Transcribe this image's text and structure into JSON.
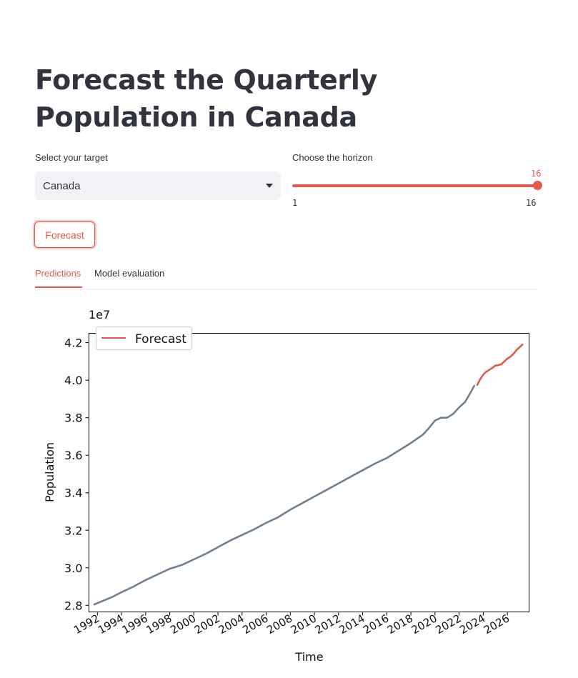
{
  "page": {
    "title": "Forecast the Quarterly Population in Canada"
  },
  "controls": {
    "target": {
      "label": "Select your target",
      "value": "Canada"
    },
    "horizon": {
      "label": "Choose the horizon",
      "min": "1",
      "max": "16",
      "value": "16"
    },
    "forecast_button": "Forecast"
  },
  "tabs": [
    {
      "label": "Predictions",
      "active": true
    },
    {
      "label": "Model evaluation",
      "active": false
    }
  ],
  "colors": {
    "accent": "#e25a4b",
    "history_line": "#708090",
    "forecast_line": "#e05a4a"
  },
  "chart_data": {
    "type": "line",
    "title": "",
    "xlabel": "Time",
    "ylabel": "Population",
    "offset_label": "1e7",
    "xlim": [
      1991.3,
      2027.8
    ],
    "ylim": [
      2.765,
      4.25
    ],
    "y_ticks": [
      2.8,
      3.0,
      3.2,
      3.4,
      3.6,
      3.8,
      4.0,
      4.2
    ],
    "y_tick_labels": [
      "2.8",
      "3.0",
      "3.2",
      "3.4",
      "3.6",
      "3.8",
      "4.0",
      "4.2"
    ],
    "x_ticks": [
      1992,
      1994,
      1996,
      1998,
      2000,
      2002,
      2004,
      2006,
      2008,
      2010,
      2012,
      2014,
      2016,
      2018,
      2020,
      2022,
      2024,
      2026
    ],
    "x_tick_labels": [
      "1992",
      "1994",
      "1996",
      "1998",
      "2000",
      "2002",
      "2004",
      "2006",
      "2008",
      "2010",
      "2012",
      "2014",
      "2016",
      "2018",
      "2020",
      "2022",
      "2024",
      "2026"
    ],
    "grid": false,
    "legend": {
      "position": "top-left",
      "entries": [
        "Forecast"
      ]
    },
    "series": [
      {
        "name": "",
        "style": "history",
        "x": [
          1991.75,
          1992.5,
          1993.25,
          1994,
          1995,
          1996,
          1997,
          1998,
          1999,
          2000,
          2001,
          2002,
          2003,
          2004,
          2005,
          2006,
          2007,
          2008,
          2009,
          2010,
          2011,
          2012,
          2013,
          2014,
          2015,
          2016,
          2017,
          2018,
          2019,
          2019.5,
          2020,
          2020.5,
          2021,
          2021.5,
          2022,
          2022.5,
          2023,
          2023.25
        ],
        "y": [
          2.805,
          2.825,
          2.845,
          2.87,
          2.9,
          2.935,
          2.965,
          2.995,
          3.015,
          3.045,
          3.075,
          3.11,
          3.145,
          3.175,
          3.205,
          3.24,
          3.27,
          3.31,
          3.345,
          3.38,
          3.415,
          3.45,
          3.485,
          3.52,
          3.555,
          3.585,
          3.625,
          3.665,
          3.71,
          3.745,
          3.785,
          3.8,
          3.8,
          3.82,
          3.855,
          3.885,
          3.94,
          3.97
        ]
      },
      {
        "name": "Forecast",
        "style": "forecast",
        "x": [
          2023.5,
          2023.75,
          2024,
          2024.25,
          2024.5,
          2024.75,
          2025,
          2025.25,
          2025.5,
          2025.75,
          2026,
          2026.25,
          2026.5,
          2026.75,
          2027,
          2027.25
        ],
        "y": [
          3.975,
          4.005,
          4.03,
          4.045,
          4.055,
          4.065,
          4.078,
          4.08,
          4.085,
          4.1,
          4.115,
          4.125,
          4.14,
          4.16,
          4.175,
          4.19
        ]
      }
    ]
  }
}
